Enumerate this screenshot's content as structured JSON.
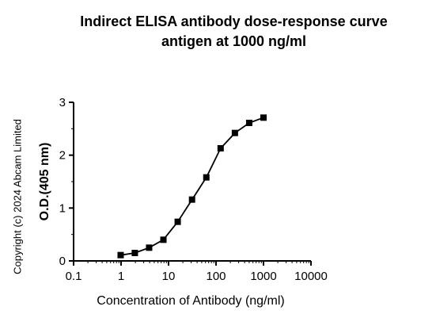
{
  "chart_data": {
    "type": "line",
    "title_line1": "Indirect ELISA antibody dose-response curve",
    "title_line2": "antigen at 1000 ng/ml",
    "xlabel": "Concentration of Antibody (ng/ml)",
    "ylabel": "O.D.(405 nm)",
    "xscale": "log",
    "xlim": [
      0.1,
      10000
    ],
    "ylim": [
      0,
      3
    ],
    "xticks": [
      0.1,
      1,
      10,
      100,
      1000,
      10000
    ],
    "xtick_labels": [
      "0.1",
      "1",
      "10",
      "100",
      "1000",
      "10000"
    ],
    "yticks": [
      0,
      1,
      2,
      3
    ],
    "ytick_labels": [
      "0",
      "1",
      "2",
      "3"
    ],
    "marker": "square",
    "line_color": "#000000",
    "grid": false,
    "series": [
      {
        "x": [
          0.98,
          1.95,
          3.9,
          7.8,
          15.6,
          31.25,
          62.5,
          125,
          250,
          500,
          1000
        ],
        "y": [
          0.11,
          0.15,
          0.25,
          0.4,
          0.74,
          1.16,
          1.58,
          2.13,
          2.42,
          2.61,
          2.71
        ]
      }
    ]
  },
  "copyright": "Copyright (c) 2024 Abcam Limited"
}
